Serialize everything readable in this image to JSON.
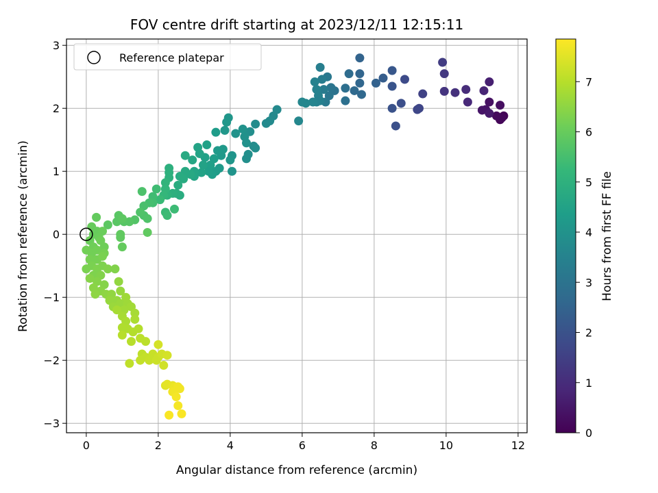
{
  "chart_data": {
    "type": "scatter",
    "title": "FOV centre drift starting at 2023/12/11 12:15:11",
    "xlabel": "Angular distance from reference (arcmin)",
    "ylabel": "Rotation from reference (arcmin)",
    "xlim": [
      -0.55,
      12.25
    ],
    "ylim": [
      -3.15,
      3.1
    ],
    "xticks": [
      "0",
      "2",
      "4",
      "6",
      "8",
      "10",
      "12"
    ],
    "yticks": [
      "−3",
      "−2",
      "−1",
      "0",
      "1",
      "2",
      "3"
    ],
    "grid": true,
    "colormap": "viridis",
    "colorbar": {
      "label": "Hours from first FF file",
      "range": [
        0,
        7.85
      ],
      "ticks": [
        "0",
        "1",
        "2",
        "3",
        "4",
        "5",
        "6",
        "7"
      ]
    },
    "legend": {
      "position": "top-left",
      "entries": [
        {
          "label": "Reference platepar",
          "marker": "hollow-circle"
        }
      ]
    },
    "reference_point": {
      "x": 0,
      "y": 0
    },
    "series": [
      {
        "values": [
          [
            11.6,
            1.88,
            0.05
          ],
          [
            11.5,
            1.82,
            0.1
          ],
          [
            11.55,
            1.85,
            0.15
          ],
          [
            11.4,
            1.88,
            0.2
          ],
          [
            11.5,
            2.05,
            0.3
          ],
          [
            11.2,
            2.1,
            0.35
          ],
          [
            11.1,
            1.98,
            0.4
          ],
          [
            11.0,
            1.97,
            0.45
          ],
          [
            11.2,
            1.92,
            0.55
          ],
          [
            11.2,
            2.42,
            0.7
          ],
          [
            11.05,
            2.28,
            0.8
          ],
          [
            10.6,
            2.1,
            0.9
          ],
          [
            10.55,
            2.3,
            1.0
          ],
          [
            10.25,
            2.25,
            1.1
          ],
          [
            9.95,
            2.27,
            1.2
          ],
          [
            9.95,
            2.55,
            1.3
          ],
          [
            9.9,
            2.73,
            1.4
          ],
          [
            9.35,
            2.23,
            1.55
          ],
          [
            9.25,
            2.0,
            1.65
          ],
          [
            9.2,
            1.98,
            1.7
          ],
          [
            8.85,
            2.46,
            1.8
          ],
          [
            8.75,
            2.08,
            1.9
          ],
          [
            8.6,
            1.72,
            1.95
          ],
          [
            8.5,
            2.0,
            2.0
          ],
          [
            8.5,
            2.35,
            2.05
          ],
          [
            8.5,
            2.6,
            2.15
          ],
          [
            8.25,
            2.48,
            2.3
          ],
          [
            8.05,
            2.4,
            2.45
          ],
          [
            7.6,
            2.8,
            2.5
          ],
          [
            7.6,
            2.55,
            2.55
          ],
          [
            7.6,
            2.4,
            2.6
          ],
          [
            7.65,
            2.22,
            2.65
          ],
          [
            7.45,
            2.28,
            2.7
          ],
          [
            7.3,
            2.55,
            2.75
          ],
          [
            7.2,
            2.32,
            2.85
          ],
          [
            7.2,
            2.12,
            2.9
          ],
          [
            6.9,
            2.28,
            3.0
          ],
          [
            6.8,
            2.33,
            3.05
          ],
          [
            6.75,
            2.2,
            3.1
          ],
          [
            6.7,
            2.5,
            3.15
          ],
          [
            6.65,
            2.1,
            3.2
          ],
          [
            6.6,
            2.3,
            3.25
          ],
          [
            6.55,
            2.46,
            3.3
          ],
          [
            6.5,
            2.65,
            3.35
          ],
          [
            6.5,
            2.12,
            3.4
          ],
          [
            6.45,
            2.2,
            3.45
          ],
          [
            6.4,
            2.1,
            3.45
          ],
          [
            6.4,
            2.3,
            3.5
          ],
          [
            6.35,
            2.42,
            3.5
          ],
          [
            6.3,
            2.1,
            3.55
          ],
          [
            6.1,
            2.08,
            3.6
          ],
          [
            6.0,
            2.1,
            3.6
          ],
          [
            5.9,
            1.8,
            3.65
          ],
          [
            5.3,
            1.98,
            3.7
          ],
          [
            5.2,
            1.88,
            3.7
          ],
          [
            5.1,
            1.8,
            3.75
          ],
          [
            5.0,
            1.76,
            3.75
          ],
          [
            4.7,
            1.75,
            3.8
          ],
          [
            4.65,
            1.4,
            3.8
          ],
          [
            4.7,
            1.37,
            3.85
          ],
          [
            4.55,
            1.63,
            3.85
          ],
          [
            4.45,
            1.2,
            3.9
          ],
          [
            4.5,
            1.27,
            3.9
          ],
          [
            4.45,
            1.45,
            3.95
          ],
          [
            4.4,
            1.55,
            3.95
          ],
          [
            4.35,
            1.67,
            4.0
          ],
          [
            4.15,
            1.6,
            4.0
          ],
          [
            4.05,
            1.25,
            4.05
          ],
          [
            4.05,
            1.0,
            4.05
          ],
          [
            4.0,
            1.18,
            4.1
          ],
          [
            3.95,
            1.85,
            4.1
          ],
          [
            3.9,
            1.78,
            4.15
          ],
          [
            3.85,
            1.65,
            4.15
          ],
          [
            3.8,
            1.35,
            4.2
          ],
          [
            3.75,
            1.25,
            4.2
          ],
          [
            3.7,
            1.05,
            4.25
          ],
          [
            3.65,
            1.33,
            4.25
          ],
          [
            3.6,
            1.62,
            4.3
          ],
          [
            3.6,
            1.0,
            4.3
          ],
          [
            3.55,
            1.2,
            4.35
          ],
          [
            3.5,
            0.95,
            4.35
          ],
          [
            3.45,
            1.1,
            4.4
          ],
          [
            3.4,
            1.0,
            4.4
          ],
          [
            3.35,
            1.42,
            4.45
          ],
          [
            3.3,
            1.22,
            4.45
          ],
          [
            3.25,
            1.1,
            4.5
          ],
          [
            3.2,
            0.98,
            4.5
          ],
          [
            3.15,
            1.28,
            4.55
          ],
          [
            3.1,
            1.38,
            4.55
          ],
          [
            3.0,
            1.0,
            4.6
          ],
          [
            3.0,
            0.92,
            4.6
          ],
          [
            2.95,
            1.18,
            4.65
          ],
          [
            2.9,
            0.95,
            4.7
          ],
          [
            2.75,
            1.25,
            4.75
          ],
          [
            2.75,
            1.0,
            4.75
          ],
          [
            2.7,
            0.88,
            4.8
          ],
          [
            2.6,
            0.92,
            4.8
          ],
          [
            2.55,
            0.78,
            4.85
          ],
          [
            2.6,
            0.62,
            4.85
          ],
          [
            2.5,
            0.65,
            4.9
          ],
          [
            2.4,
            0.65,
            4.95
          ],
          [
            2.3,
            1.05,
            4.95
          ],
          [
            2.3,
            0.98,
            5.0
          ],
          [
            2.3,
            0.9,
            5.0
          ],
          [
            2.25,
            0.62,
            5.05
          ],
          [
            2.2,
            0.82,
            5.1
          ],
          [
            2.2,
            0.72,
            5.15
          ],
          [
            2.15,
            0.62,
            5.2
          ],
          [
            2.05,
            0.55,
            5.3
          ],
          [
            2.2,
            0.35,
            5.3
          ],
          [
            2.25,
            0.3,
            5.35
          ],
          [
            2.45,
            0.4,
            5.35
          ],
          [
            1.95,
            0.72,
            5.4
          ],
          [
            1.85,
            0.6,
            5.4
          ],
          [
            1.85,
            0.5,
            5.45
          ],
          [
            1.75,
            0.5,
            5.5
          ],
          [
            1.6,
            0.45,
            5.55
          ],
          [
            1.6,
            0.3,
            5.6
          ],
          [
            1.55,
            0.68,
            5.6
          ],
          [
            1.5,
            0.35,
            5.65
          ],
          [
            1.7,
            0.25,
            5.65
          ],
          [
            1.35,
            0.23,
            5.7
          ],
          [
            1.2,
            0.2,
            5.75
          ],
          [
            1.05,
            0.2,
            5.75
          ],
          [
            0.9,
            0.3,
            5.8
          ],
          [
            0.85,
            0.2,
            5.8
          ],
          [
            1.0,
            0.25,
            5.85
          ],
          [
            0.6,
            0.15,
            5.85
          ],
          [
            1.7,
            0.03,
            5.9
          ],
          [
            0.95,
            0.0,
            5.9
          ],
          [
            0.95,
            -0.05,
            5.9
          ],
          [
            1.0,
            -0.2,
            5.95
          ],
          [
            0.28,
            0.27,
            5.95
          ],
          [
            0.15,
            0.12,
            6.0
          ],
          [
            0.2,
            0.0,
            6.0
          ],
          [
            0.3,
            0.05,
            6.0
          ],
          [
            0.45,
            0.05,
            6.05
          ],
          [
            0.35,
            -0.05,
            6.05
          ],
          [
            0.1,
            -0.1,
            6.05
          ],
          [
            0.2,
            -0.2,
            6.1
          ],
          [
            0.4,
            -0.1,
            6.1
          ],
          [
            0.5,
            -0.2,
            6.1
          ],
          [
            0.0,
            -0.25,
            6.15
          ],
          [
            0.15,
            -0.3,
            6.15
          ],
          [
            0.3,
            -0.25,
            6.15
          ],
          [
            0.5,
            -0.3,
            6.2
          ],
          [
            0.1,
            -0.4,
            6.2
          ],
          [
            0.3,
            -0.4,
            6.2
          ],
          [
            0.45,
            -0.35,
            6.25
          ],
          [
            0.0,
            -0.55,
            6.25
          ],
          [
            0.15,
            -0.5,
            6.25
          ],
          [
            0.3,
            -0.55,
            6.3
          ],
          [
            0.45,
            -0.5,
            6.3
          ],
          [
            0.2,
            -0.65,
            6.3
          ],
          [
            0.4,
            -0.65,
            6.35
          ],
          [
            0.6,
            -0.55,
            6.35
          ],
          [
            0.8,
            -0.55,
            6.35
          ],
          [
            0.1,
            -0.7,
            6.4
          ],
          [
            0.3,
            -0.75,
            6.4
          ],
          [
            0.5,
            -0.8,
            6.4
          ],
          [
            0.2,
            -0.85,
            6.45
          ],
          [
            0.4,
            -0.9,
            6.45
          ],
          [
            0.25,
            -0.95,
            6.5
          ],
          [
            0.55,
            -0.95,
            6.5
          ],
          [
            0.7,
            -0.95,
            6.55
          ],
          [
            0.9,
            -0.75,
            6.55
          ],
          [
            0.95,
            -0.9,
            6.6
          ],
          [
            0.85,
            -1.05,
            6.6
          ],
          [
            0.65,
            -1.05,
            6.6
          ],
          [
            0.75,
            -1.15,
            6.65
          ],
          [
            0.95,
            -1.1,
            6.65
          ],
          [
            1.1,
            -1.0,
            6.7
          ],
          [
            1.15,
            -1.1,
            6.7
          ],
          [
            1.25,
            -1.15,
            6.75
          ],
          [
            1.05,
            -1.2,
            6.75
          ],
          [
            1.0,
            -1.3,
            6.8
          ],
          [
            1.35,
            -1.25,
            6.8
          ],
          [
            0.85,
            -1.2,
            6.8
          ],
          [
            1.35,
            -1.35,
            6.85
          ],
          [
            1.1,
            -1.38,
            6.85
          ],
          [
            1.15,
            -1.5,
            6.9
          ],
          [
            1.0,
            -1.48,
            6.9
          ],
          [
            1.3,
            -1.55,
            6.95
          ],
          [
            1.45,
            -1.5,
            6.95
          ],
          [
            1.0,
            -1.6,
            7.0
          ],
          [
            1.25,
            -1.7,
            7.0
          ],
          [
            1.5,
            -1.65,
            7.05
          ],
          [
            1.65,
            -1.7,
            7.05
          ],
          [
            1.2,
            -2.05,
            7.1
          ],
          [
            1.55,
            -1.9,
            7.1
          ],
          [
            1.65,
            -1.95,
            7.15
          ],
          [
            1.5,
            -2.0,
            7.15
          ],
          [
            1.75,
            -2.0,
            7.2
          ],
          [
            1.85,
            -1.9,
            7.2
          ],
          [
            1.95,
            -2.0,
            7.25
          ],
          [
            2.0,
            -1.95,
            7.25
          ],
          [
            2.1,
            -1.9,
            7.3
          ],
          [
            2.15,
            -2.08,
            7.3
          ],
          [
            2.0,
            -1.75,
            7.35
          ],
          [
            2.25,
            -1.92,
            7.35
          ],
          [
            2.2,
            -2.4,
            7.5
          ],
          [
            2.25,
            -2.38,
            7.55
          ],
          [
            2.4,
            -2.4,
            7.6
          ],
          [
            2.45,
            -2.42,
            7.65
          ],
          [
            2.5,
            -2.45,
            7.65
          ],
          [
            2.55,
            -2.42,
            7.7
          ],
          [
            2.6,
            -2.45,
            7.7
          ],
          [
            2.4,
            -2.5,
            7.7
          ],
          [
            2.5,
            -2.58,
            7.75
          ],
          [
            2.55,
            -2.72,
            7.75
          ],
          [
            2.3,
            -2.87,
            7.8
          ],
          [
            2.65,
            -2.85,
            7.8
          ]
        ]
      }
    ]
  }
}
